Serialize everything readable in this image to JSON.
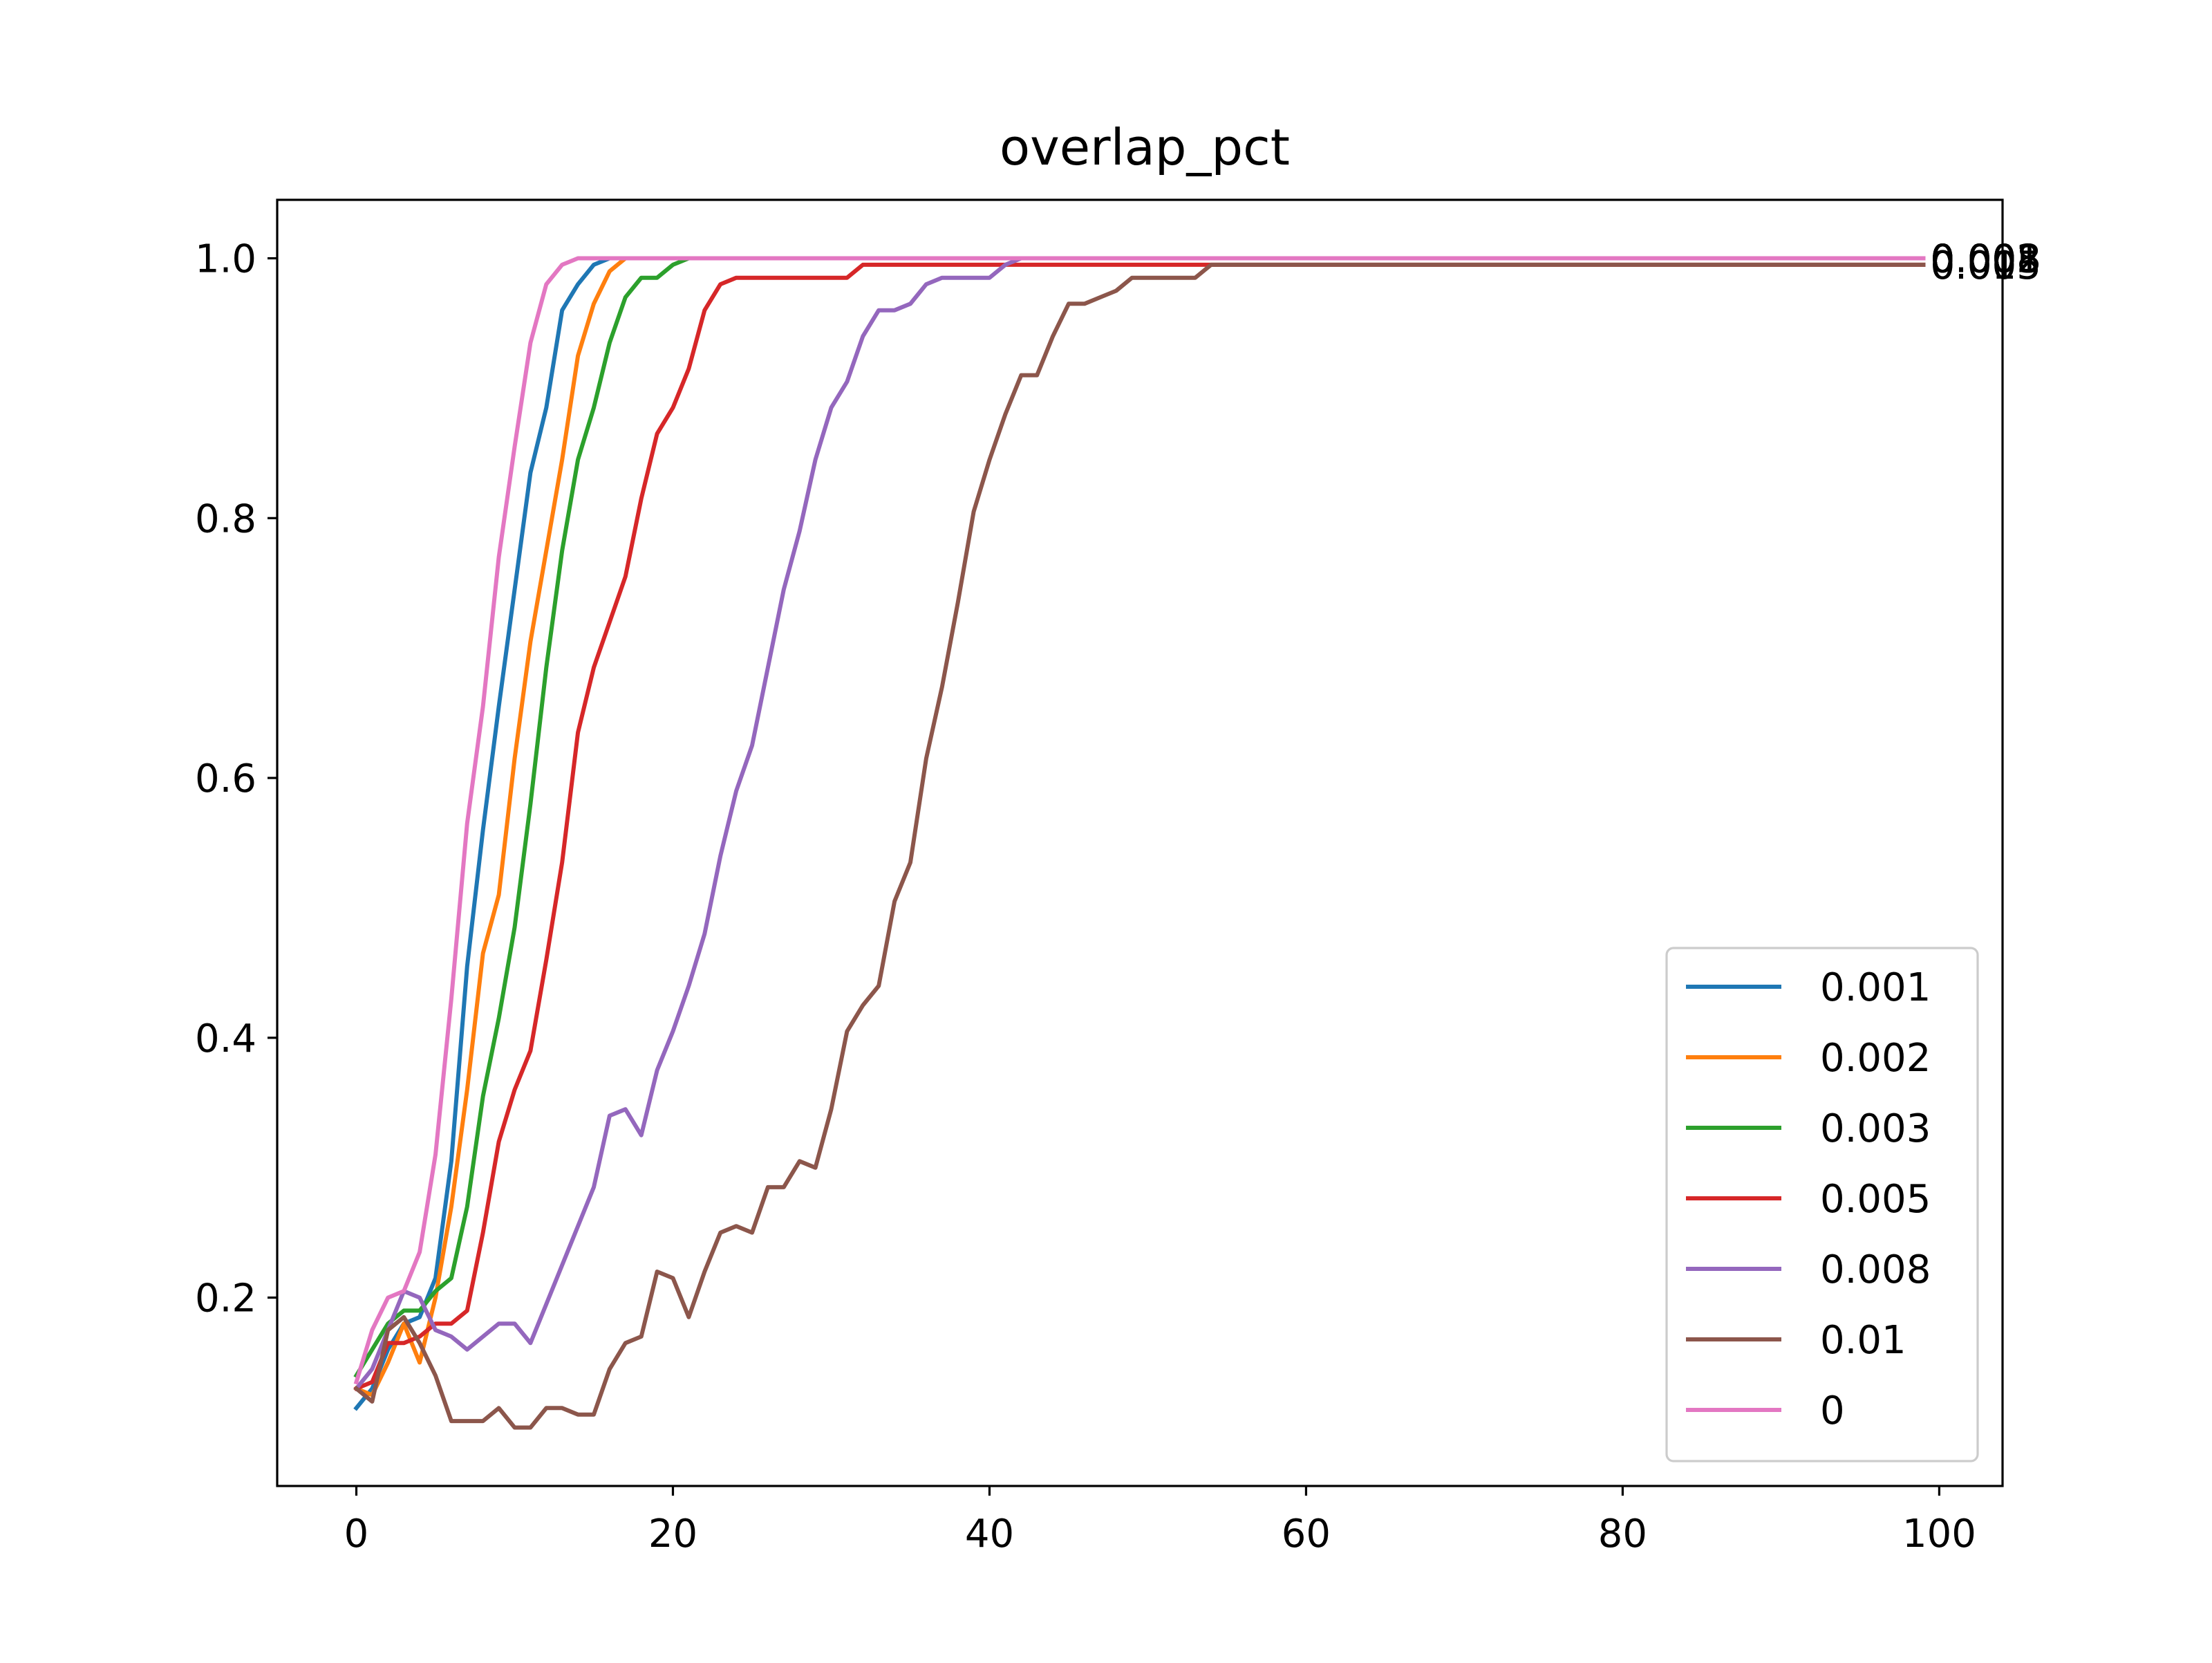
{
  "chart_data": {
    "type": "line",
    "title": "overlap_pct",
    "xlabel": "",
    "ylabel": "",
    "xlim": [
      -5,
      104
    ],
    "ylim": [
      0.055,
      1.045
    ],
    "xticks": [
      0,
      20,
      40,
      60,
      80,
      100
    ],
    "yticks": [
      0.2,
      0.4,
      0.6,
      0.8,
      1.0
    ],
    "xtick_labels": [
      "0",
      "20",
      "40",
      "60",
      "80",
      "100"
    ],
    "ytick_labels": [
      "0.2",
      "0.4",
      "0.6",
      "0.8",
      "1.0"
    ],
    "grid": false,
    "legend_position": "lower-right",
    "x_start": 0,
    "x_end": 99,
    "series": [
      {
        "name": "0.001",
        "color": "#1f77b4",
        "end_label": "0.001",
        "keypoints": [
          [
            0,
            0.115
          ],
          [
            1,
            0.13
          ],
          [
            2,
            0.16
          ],
          [
            3,
            0.18
          ],
          [
            4,
            0.185
          ],
          [
            5,
            0.215
          ],
          [
            6,
            0.305
          ],
          [
            7,
            0.455
          ],
          [
            8,
            0.56
          ],
          [
            9,
            0.655
          ],
          [
            10,
            0.745
          ],
          [
            11,
            0.835
          ],
          [
            12,
            0.885
          ],
          [
            13,
            0.96
          ],
          [
            14,
            0.98
          ],
          [
            15,
            0.995
          ],
          [
            16,
            1.0
          ],
          [
            99,
            1.0
          ]
        ]
      },
      {
        "name": "0.002",
        "color": "#ff7f0e",
        "end_label": "0.002",
        "keypoints": [
          [
            0,
            0.13
          ],
          [
            1,
            0.125
          ],
          [
            2,
            0.15
          ],
          [
            3,
            0.18
          ],
          [
            4,
            0.15
          ],
          [
            5,
            0.2
          ],
          [
            6,
            0.27
          ],
          [
            7,
            0.36
          ],
          [
            8,
            0.465
          ],
          [
            9,
            0.51
          ],
          [
            10,
            0.615
          ],
          [
            11,
            0.705
          ],
          [
            12,
            0.775
          ],
          [
            13,
            0.845
          ],
          [
            14,
            0.925
          ],
          [
            15,
            0.965
          ],
          [
            16,
            0.99
          ],
          [
            17,
            1.0
          ],
          [
            99,
            1.0
          ]
        ]
      },
      {
        "name": "0.003",
        "color": "#2ca02c",
        "end_label": "0.003",
        "keypoints": [
          [
            0,
            0.14
          ],
          [
            1,
            0.16
          ],
          [
            2,
            0.18
          ],
          [
            3,
            0.19
          ],
          [
            4,
            0.19
          ],
          [
            5,
            0.205
          ],
          [
            6,
            0.215
          ],
          [
            7,
            0.27
          ],
          [
            8,
            0.355
          ],
          [
            9,
            0.415
          ],
          [
            10,
            0.485
          ],
          [
            11,
            0.58
          ],
          [
            12,
            0.685
          ],
          [
            13,
            0.775
          ],
          [
            14,
            0.845
          ],
          [
            15,
            0.885
          ],
          [
            16,
            0.935
          ],
          [
            17,
            0.97
          ],
          [
            18,
            0.985
          ],
          [
            19,
            0.985
          ],
          [
            20,
            0.995
          ],
          [
            21,
            1.0
          ],
          [
            99,
            1.0
          ]
        ]
      },
      {
        "name": "0.005",
        "color": "#d62728",
        "end_label": "0.005",
        "keypoints": [
          [
            0,
            0.13
          ],
          [
            1,
            0.135
          ],
          [
            2,
            0.165
          ],
          [
            3,
            0.165
          ],
          [
            4,
            0.17
          ],
          [
            5,
            0.18
          ],
          [
            6,
            0.18
          ],
          [
            7,
            0.19
          ],
          [
            8,
            0.25
          ],
          [
            9,
            0.32
          ],
          [
            10,
            0.36
          ],
          [
            11,
            0.39
          ],
          [
            12,
            0.46
          ],
          [
            13,
            0.535
          ],
          [
            14,
            0.635
          ],
          [
            15,
            0.685
          ],
          [
            16,
            0.72
          ],
          [
            17,
            0.755
          ],
          [
            18,
            0.815
          ],
          [
            19,
            0.865
          ],
          [
            20,
            0.885
          ],
          [
            21,
            0.915
          ],
          [
            22,
            0.96
          ],
          [
            23,
            0.98
          ],
          [
            24,
            0.985
          ],
          [
            31,
            0.985
          ],
          [
            32,
            0.995
          ],
          [
            99,
            0.995
          ]
        ]
      },
      {
        "name": "0.008",
        "color": "#9467bd",
        "end_label": "0.008",
        "keypoints": [
          [
            0,
            0.13
          ],
          [
            1,
            0.145
          ],
          [
            2,
            0.175
          ],
          [
            3,
            0.205
          ],
          [
            4,
            0.2
          ],
          [
            5,
            0.175
          ],
          [
            6,
            0.17
          ],
          [
            7,
            0.16
          ],
          [
            8,
            0.17
          ],
          [
            9,
            0.18
          ],
          [
            10,
            0.18
          ],
          [
            11,
            0.165
          ],
          [
            12,
            0.195
          ],
          [
            13,
            0.225
          ],
          [
            14,
            0.255
          ],
          [
            15,
            0.285
          ],
          [
            16,
            0.34
          ],
          [
            17,
            0.345
          ],
          [
            18,
            0.325
          ],
          [
            19,
            0.375
          ],
          [
            20,
            0.405
          ],
          [
            21,
            0.44
          ],
          [
            22,
            0.48
          ],
          [
            23,
            0.54
          ],
          [
            24,
            0.59
          ],
          [
            25,
            0.625
          ],
          [
            26,
            0.685
          ],
          [
            27,
            0.745
          ],
          [
            28,
            0.79
          ],
          [
            29,
            0.845
          ],
          [
            30,
            0.885
          ],
          [
            31,
            0.905
          ],
          [
            32,
            0.94
          ],
          [
            33,
            0.96
          ],
          [
            34,
            0.96
          ],
          [
            35,
            0.965
          ],
          [
            36,
            0.98
          ],
          [
            37,
            0.985
          ],
          [
            40,
            0.985
          ],
          [
            41,
            0.995
          ],
          [
            42,
            1.0
          ],
          [
            99,
            1.0
          ]
        ]
      },
      {
        "name": "0.01",
        "color": "#8c564b",
        "end_label": "0.01",
        "keypoints": [
          [
            0,
            0.13
          ],
          [
            1,
            0.12
          ],
          [
            2,
            0.175
          ],
          [
            3,
            0.185
          ],
          [
            4,
            0.165
          ],
          [
            5,
            0.14
          ],
          [
            6,
            0.105
          ],
          [
            7,
            0.105
          ],
          [
            8,
            0.105
          ],
          [
            9,
            0.115
          ],
          [
            10,
            0.1
          ],
          [
            11,
            0.1
          ],
          [
            12,
            0.115
          ],
          [
            13,
            0.115
          ],
          [
            14,
            0.11
          ],
          [
            15,
            0.11
          ],
          [
            16,
            0.145
          ],
          [
            17,
            0.165
          ],
          [
            18,
            0.17
          ],
          [
            19,
            0.22
          ],
          [
            20,
            0.215
          ],
          [
            21,
            0.185
          ],
          [
            22,
            0.22
          ],
          [
            23,
            0.25
          ],
          [
            24,
            0.255
          ],
          [
            25,
            0.25
          ],
          [
            26,
            0.285
          ],
          [
            27,
            0.285
          ],
          [
            28,
            0.305
          ],
          [
            29,
            0.3
          ],
          [
            30,
            0.345
          ],
          [
            31,
            0.405
          ],
          [
            32,
            0.425
          ],
          [
            33,
            0.44
          ],
          [
            34,
            0.505
          ],
          [
            35,
            0.535
          ],
          [
            36,
            0.615
          ],
          [
            37,
            0.67
          ],
          [
            38,
            0.735
          ],
          [
            39,
            0.805
          ],
          [
            40,
            0.845
          ],
          [
            41,
            0.88
          ],
          [
            42,
            0.91
          ],
          [
            43,
            0.91
          ],
          [
            44,
            0.94
          ],
          [
            45,
            0.965
          ],
          [
            46,
            0.965
          ],
          [
            47,
            0.97
          ],
          [
            48,
            0.975
          ],
          [
            49,
            0.985
          ],
          [
            53,
            0.985
          ],
          [
            54,
            0.995
          ],
          [
            99,
            0.995
          ]
        ]
      },
      {
        "name": "0",
        "color": "#e377c2",
        "end_label": "0",
        "keypoints": [
          [
            0,
            0.135
          ],
          [
            1,
            0.175
          ],
          [
            2,
            0.2
          ],
          [
            3,
            0.205
          ],
          [
            4,
            0.235
          ],
          [
            5,
            0.31
          ],
          [
            6,
            0.43
          ],
          [
            7,
            0.565
          ],
          [
            8,
            0.655
          ],
          [
            9,
            0.77
          ],
          [
            10,
            0.855
          ],
          [
            11,
            0.935
          ],
          [
            12,
            0.98
          ],
          [
            13,
            0.995
          ],
          [
            14,
            1.0
          ],
          [
            99,
            1.0
          ]
        ]
      }
    ]
  }
}
